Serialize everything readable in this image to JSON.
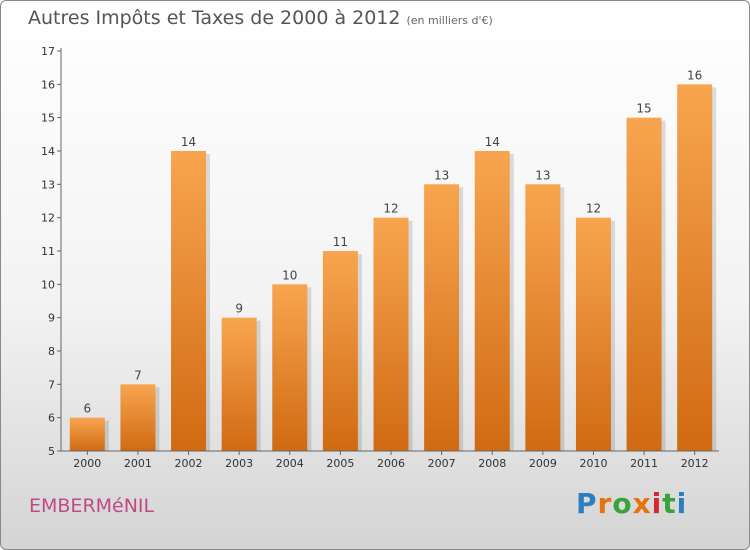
{
  "title": "Autres Impôts et Taxes de 2000 à 2012",
  "subtitle": "(en milliers d'€)",
  "commune": "EMBERMéNIL",
  "logo": {
    "letters": [
      "P",
      "r",
      "o",
      "x",
      "i",
      "t",
      "i"
    ],
    "colors": [
      "#2a7fc1",
      "#e8730c",
      "#3aa23a",
      "#e8730c",
      "#d6262f",
      "#3aa23a",
      "#2a7fc1"
    ]
  },
  "colors": {
    "bar_light": "#f8a550",
    "bar_dark": "#d06a12",
    "axis": "#666666"
  },
  "chart_data": {
    "type": "bar",
    "categories": [
      "2000",
      "2001",
      "2002",
      "2003",
      "2004",
      "2005",
      "2006",
      "2007",
      "2008",
      "2009",
      "2010",
      "2011",
      "2012"
    ],
    "values": [
      6,
      7,
      14,
      9,
      10,
      11,
      12,
      13,
      14,
      13,
      12,
      15,
      16
    ],
    "ylim": [
      5,
      17
    ],
    "yticks": [
      5,
      6,
      7,
      8,
      9,
      10,
      11,
      12,
      13,
      14,
      15,
      16,
      17
    ],
    "grid": false,
    "xlabel": "",
    "ylabel": ""
  }
}
